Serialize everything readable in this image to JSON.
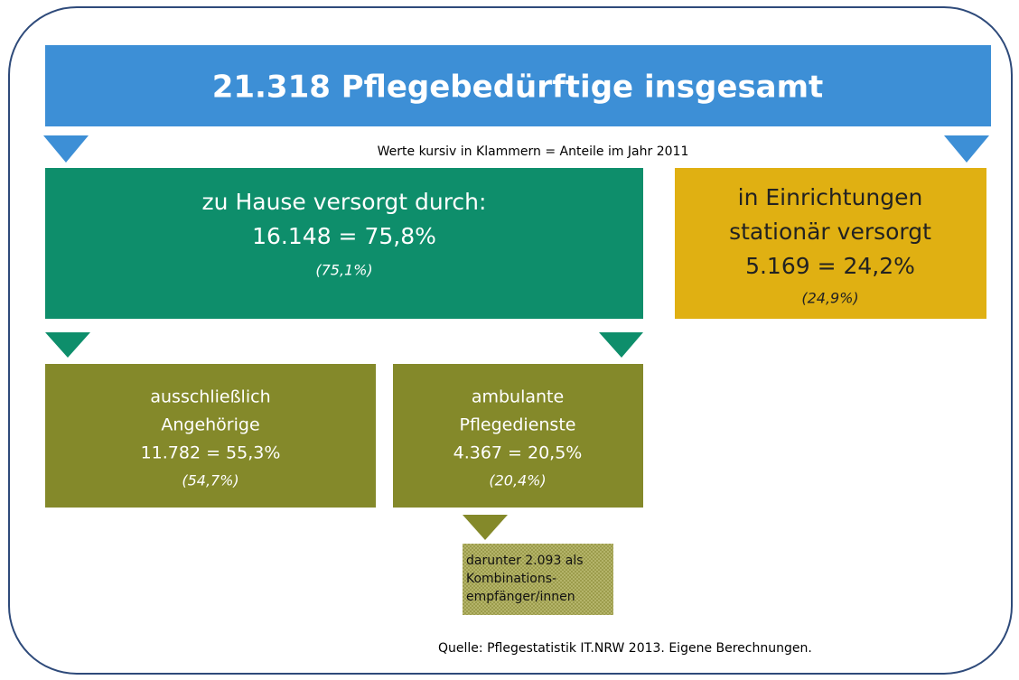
{
  "header": {
    "title": "21.318 Pflegebedürftige insgesamt",
    "note": "Werte kursiv in Klammern = Anteile im Jahr 2011"
  },
  "nodes": [
    {
      "lines": [
        "zu Hause versorgt durch:",
        "16.148  = 75,8%"
      ],
      "share_2011": "(75,1%)"
    },
    {
      "lines": [
        "in Einrichtungen",
        "stationär versorgt",
        "5.169 = 24,2%"
      ],
      "share_2011": "(24,9%)"
    },
    {
      "lines": [
        "ausschließlich",
        "Angehörige",
        "11.782 = 55,3%"
      ],
      "share_2011": "(54,7%)"
    },
    {
      "lines": [
        "ambulante",
        "Pflegedienste",
        "4.367 = 20,5%"
      ],
      "share_2011": "(20,4%)"
    },
    {
      "lines": [
        "darunter 2.093 als",
        "Kombinations-",
        "empfänger/innen"
      ]
    }
  ],
  "source": "Quelle: Pflegestatistik IT.NRW 2013. Eigene Berechnungen."
}
